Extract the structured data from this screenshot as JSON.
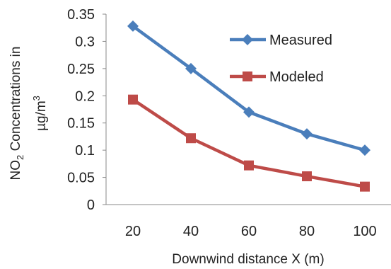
{
  "chart_data": {
    "type": "line",
    "title": "",
    "x": [
      20,
      40,
      60,
      80,
      100
    ],
    "xlabel": "Downwind distance X (m)",
    "ylabel": {
      "prefix": "NO",
      "subscript": "2",
      "middle": " Concentrations in",
      "unit_prefix": "µg/m",
      "superscript": "3"
    },
    "ylim": [
      0,
      0.35
    ],
    "yticks": [
      "0",
      "0.05",
      "0.1",
      "0.15",
      "0.2",
      "0.25",
      "0.3",
      "0.35"
    ],
    "xticks": [
      "20",
      "40",
      "60",
      "80",
      "100"
    ],
    "grid": false,
    "legend_position": "top-right",
    "series": [
      {
        "name": "Measured",
        "color": "#4A7EBB",
        "marker": "diamond",
        "values": [
          0.328,
          0.25,
          0.17,
          0.13,
          0.1
        ]
      },
      {
        "name": "Modeled",
        "color": "#BE4B48",
        "marker": "square",
        "values": [
          0.193,
          0.122,
          0.072,
          0.052,
          0.033
        ]
      }
    ]
  }
}
